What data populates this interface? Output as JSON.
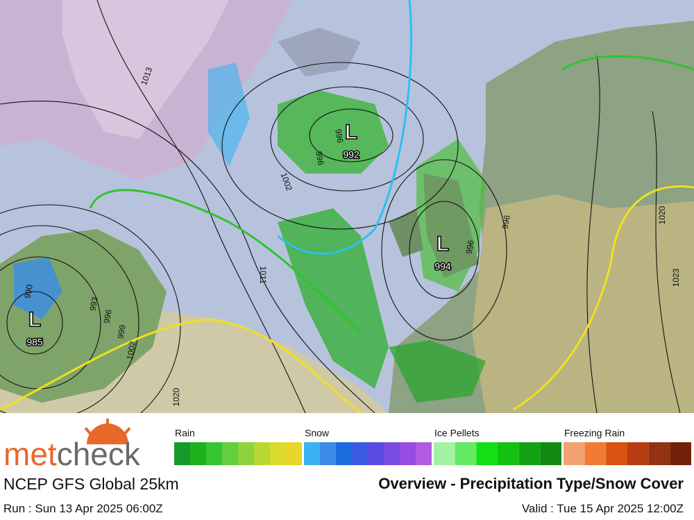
{
  "map": {
    "lows": [
      {
        "symbol": "L",
        "pressure": "992"
      },
      {
        "symbol": "L",
        "pressure": "994"
      },
      {
        "symbol": "L",
        "pressure": "985"
      }
    ],
    "isobar_labels": [
      "1002",
      "996",
      "996",
      "1011",
      "996",
      "996",
      "1020",
      "1023",
      "1020",
      "996",
      "999",
      "1002",
      "993",
      "990",
      "1013"
    ]
  },
  "legend": [
    {
      "name": "Rain",
      "colors": [
        "#159a2a",
        "#1fb21f",
        "#35c433",
        "#62cf3c",
        "#90d23c",
        "#b6d734",
        "#d9dc2c",
        "#e9d52c"
      ]
    },
    {
      "name": "Snow",
      "colors": [
        "#3cb2f2",
        "#3a8ce8",
        "#1c6ce0",
        "#3a5ce2",
        "#5a4ce2",
        "#7a4ce2",
        "#984ce2",
        "#b05ce2"
      ]
    },
    {
      "name": "Ice Pellets",
      "colors": [
        "#a2f2a2",
        "#62ea62",
        "#12e012",
        "#12c212",
        "#12a212",
        "#128a12"
      ]
    },
    {
      "name": "Freezing Rain",
      "colors": [
        "#f2a272",
        "#f27a32",
        "#d85212",
        "#b83c12",
        "#923212",
        "#722208"
      ]
    }
  ],
  "brand": {
    "part1": "met",
    "part2": "check"
  },
  "model": "NCEP GFS Global 25km",
  "title": "Overview - Precipitation Type/Snow Cover",
  "run": "Run : Sun 13 Apr 2025 06:00Z",
  "valid": "Valid : Tue 15 Apr 2025 12:00Z"
}
